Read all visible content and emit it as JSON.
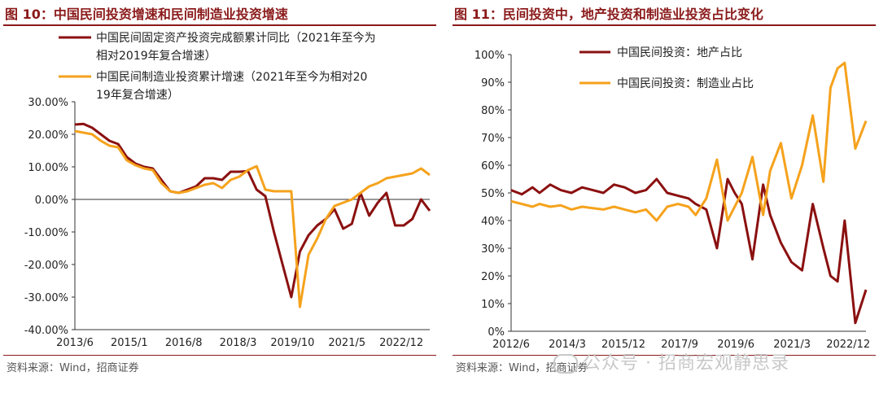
{
  "chart_data": [
    {
      "type": "line",
      "title": "图 10：中国民间投资增速和民间制造业投资增速",
      "x_ticks": [
        "2013/6",
        "2015/1",
        "2016/8",
        "2018/3",
        "2019/10",
        "2021/5",
        "2022/12"
      ],
      "y_ticks": [
        "30.00%",
        "20.00%",
        "10.00%",
        "0.00%",
        "-10.00%",
        "-20.00%",
        "-30.00%",
        "-40.00%"
      ],
      "ylim": [
        -40,
        30
      ],
      "legend_position": "top",
      "source": "资料来源：Wind，招商证券",
      "colors": {
        "series1": "#8b1010",
        "series2": "#f5a21c",
        "title": "#8b1a1a"
      },
      "series": [
        {
          "name": "中国民间固定资产投资完成额累计同比（2021年至今为相对2019年复合增速）",
          "x": [
            "2013/6",
            "2013/9",
            "2013/12",
            "2014/3",
            "2014/6",
            "2014/9",
            "2015/1",
            "2015/4",
            "2015/7",
            "2015/10",
            "2016/1",
            "2016/4",
            "2016/8",
            "2016/11",
            "2017/3",
            "2017/6",
            "2017/9",
            "2018/1",
            "2018/3",
            "2018/6",
            "2018/9",
            "2018/12",
            "2019/3",
            "2019/6",
            "2019/8",
            "2019/10",
            "2019/12",
            "2020/3",
            "2020/5",
            "2020/7",
            "2020/9",
            "2020/12",
            "2021/3",
            "2021/5",
            "2021/8",
            "2021/11",
            "2022/2",
            "2022/6",
            "2022/9",
            "2022/12",
            "2023/3",
            "2023/5"
          ],
          "y": [
            23,
            23.2,
            22,
            20,
            18,
            17,
            13,
            11,
            10,
            9.5,
            6,
            2.5,
            2,
            3,
            4,
            6.5,
            6.5,
            6,
            8.5,
            8.5,
            8.7,
            3,
            1,
            -10,
            -20,
            -30,
            -16,
            -11,
            -8,
            -6,
            -3,
            -9,
            -7.5,
            2,
            -5,
            -1,
            2,
            -8,
            -8,
            -6,
            0,
            -3.5
          ]
        },
        {
          "name": "中国民间制造业投资累计增速（2021年至今为相对2019年复合增速）",
          "x": [
            "2013/6",
            "2013/9",
            "2013/12",
            "2014/3",
            "2014/6",
            "2014/9",
            "2015/1",
            "2015/4",
            "2015/7",
            "2015/10",
            "2016/1",
            "2016/4",
            "2016/8",
            "2016/11",
            "2017/3",
            "2017/6",
            "2017/9",
            "2018/1",
            "2018/3",
            "2018/6",
            "2018/9",
            "2018/12",
            "2019/3",
            "2019/6",
            "2019/8",
            "2019/10",
            "2019/12",
            "2020/3",
            "2020/5",
            "2020/7",
            "2020/9",
            "2020/12",
            "2021/3",
            "2021/5",
            "2021/8",
            "2021/11",
            "2022/2",
            "2022/6",
            "2022/9",
            "2022/12",
            "2023/3",
            "2023/5"
          ],
          "y": [
            21,
            20.5,
            20,
            18,
            16.5,
            16,
            12,
            10.5,
            9.5,
            9,
            5,
            2.5,
            2,
            2.5,
            3.5,
            4.5,
            5,
            3.5,
            6,
            7,
            9,
            10.2,
            3,
            2.5,
            2.5,
            2.5,
            -33,
            -17,
            -12,
            -6,
            -2,
            -1,
            0,
            2,
            4,
            5,
            6.5,
            7,
            7.5,
            8,
            9.5,
            7.5
          ]
        }
      ]
    },
    {
      "type": "line",
      "title": "图 11：民间投资中，地产投资和制造业投资占比变化",
      "x_ticks": [
        "2012/6",
        "2014/3",
        "2015/12",
        "2017/9",
        "2019/6",
        "2021/3",
        "2022/12"
      ],
      "y_ticks": [
        "100%",
        "90%",
        "80%",
        "70%",
        "60%",
        "50%",
        "40%",
        "30%",
        "20%",
        "10%",
        "0%"
      ],
      "ylim": [
        0,
        100
      ],
      "legend_position": "top-right",
      "source": "资料来源：Wind，招商证券",
      "colors": {
        "series1": "#8b1010",
        "series2": "#f5a21c",
        "title": "#8b1a1a"
      },
      "series": [
        {
          "name": "中国民间投资：地产占比",
          "x_frac": [
            0.0,
            0.03,
            0.06,
            0.08,
            0.11,
            0.14,
            0.17,
            0.2,
            0.23,
            0.26,
            0.29,
            0.32,
            0.35,
            0.38,
            0.41,
            0.44,
            0.47,
            0.5,
            0.52,
            0.55,
            0.58,
            0.61,
            0.63,
            0.65,
            0.68,
            0.71,
            0.73,
            0.76,
            0.79,
            0.82,
            0.85,
            0.88,
            0.9,
            0.92,
            0.94,
            0.97,
            1.0
          ],
          "y": [
            51,
            49.5,
            52,
            50,
            53,
            51,
            50,
            52,
            51,
            50,
            53,
            52,
            50,
            51,
            55,
            50,
            49,
            48,
            46,
            44,
            30,
            55,
            50,
            46,
            26,
            53,
            42,
            32,
            25,
            22,
            46,
            30,
            20,
            18,
            40,
            3,
            15
          ]
        },
        {
          "name": "中国民间投资：制造业占比",
          "x_frac": [
            0.0,
            0.03,
            0.06,
            0.08,
            0.11,
            0.14,
            0.17,
            0.2,
            0.23,
            0.26,
            0.29,
            0.32,
            0.35,
            0.38,
            0.41,
            0.44,
            0.47,
            0.5,
            0.52,
            0.55,
            0.58,
            0.61,
            0.63,
            0.65,
            0.68,
            0.71,
            0.73,
            0.76,
            0.79,
            0.82,
            0.85,
            0.88,
            0.9,
            0.92,
            0.94,
            0.97,
            1.0
          ],
          "y": [
            47,
            46,
            45,
            46,
            45,
            45.5,
            44,
            45,
            44.5,
            44,
            45,
            44,
            43,
            44,
            40,
            45,
            46,
            45,
            42,
            48,
            62,
            40,
            45,
            50,
            63,
            42,
            58,
            68,
            48,
            60,
            78,
            54,
            88,
            95,
            97,
            66,
            76
          ]
        }
      ]
    }
  ],
  "watermark": "公众号 · 招商宏观静思录"
}
